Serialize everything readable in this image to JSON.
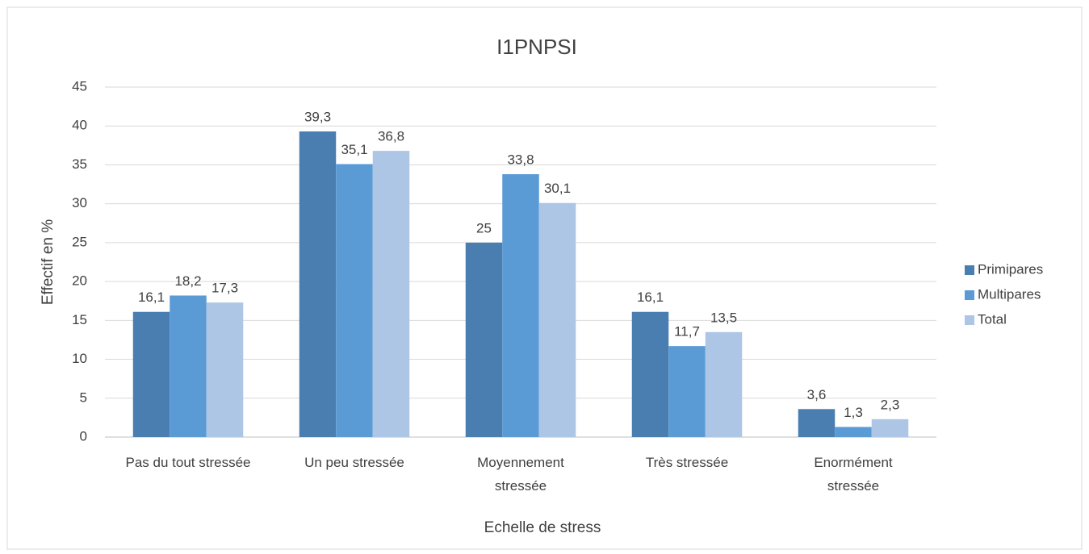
{
  "chart_data": {
    "type": "bar",
    "title": "I1PNPSI",
    "x_label": "Echelle de stress",
    "y_label": "Effectif en %",
    "categories": [
      "Pas du tout stressée",
      "Un peu stressée",
      "Moyennement\nstressée",
      "Très stressée",
      "Enormément\nstressée"
    ],
    "series": [
      {
        "name": "Primipares",
        "color": "#4a7eb0",
        "values": [
          16.1,
          39.3,
          25,
          16.1,
          3.6
        ],
        "value_labels": [
          "16,1",
          "39,3",
          "25",
          "16,1",
          "3,6"
        ]
      },
      {
        "name": "Multipares",
        "color": "#5b9bd5",
        "values": [
          18.2,
          35.1,
          33.8,
          11.7,
          1.3
        ],
        "value_labels": [
          "18,2",
          "35,1",
          "33,8",
          "11,7",
          "1,3"
        ]
      },
      {
        "name": "Total",
        "color": "#aec6e6",
        "values": [
          17.3,
          36.8,
          30.1,
          13.5,
          2.3
        ],
        "value_labels": [
          "17,3",
          "36,8",
          "30,1",
          "13,5",
          "2,3"
        ]
      }
    ],
    "ylim": [
      0,
      45
    ],
    "yticks": [
      0,
      5,
      10,
      15,
      20,
      25,
      30,
      35,
      40,
      45
    ],
    "grid": true,
    "legend": "right"
  }
}
